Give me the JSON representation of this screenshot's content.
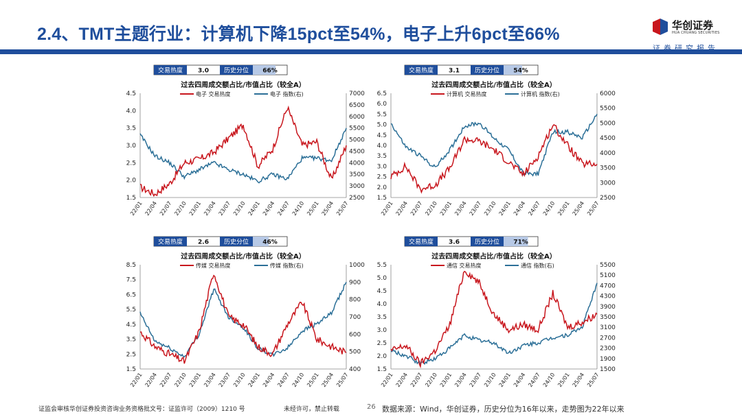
{
  "header": {
    "title": "2.4、TMT主题行业：计算机下降15pct至54%，电子上升6pct至66%",
    "logo_cn": "华创证券",
    "logo_en": "HUA CHUANG SECURITIES",
    "tagline": "证券研究报告"
  },
  "colors": {
    "red": "#c8161d",
    "blue": "#2b6f97",
    "navy": "#1f4e9c",
    "box_fill": "#b7c9e6"
  },
  "panels": [
    {
      "info": {
        "label1": "交易热度",
        "val1": "3.0",
        "label2": "历史分位",
        "val2": "66%",
        "pct": 66
      },
      "chart_title": "过去四周成交额占比/市值占比（较全A）",
      "legend": [
        "电子 交易热度",
        "电子 指数(右)"
      ],
      "left_ticks": [
        "4.5",
        "4.0",
        "3.5",
        "3.0",
        "2.5",
        "2.0",
        "1.5"
      ],
      "right_ticks": [
        "7000",
        "6500",
        "6000",
        "5500",
        "5000",
        "4500",
        "4000",
        "3500",
        "3000",
        "2500"
      ],
      "x_ticks": [
        "22/01",
        "22/04",
        "22/07",
        "22/10",
        "23/01",
        "23/04",
        "23/07",
        "23/10",
        "24/01",
        "24/04",
        "24/07",
        "24/10",
        "25/01",
        "25/04",
        "25/07"
      ]
    },
    {
      "info": {
        "label1": "交易热度",
        "val1": "3.1",
        "label2": "历史分位",
        "val2": "54%",
        "pct": 54
      },
      "chart_title": "过去四周成交额占比/市值占比（较全A）",
      "legend": [
        "计算机 交易热度",
        "计算机 指数(右)"
      ],
      "left_ticks": [
        "6.5",
        "6.0",
        "5.5",
        "5.0",
        "4.5",
        "4.0",
        "3.5",
        "3.0",
        "2.5",
        "2.0",
        "1.5"
      ],
      "right_ticks": [
        "6000",
        "5500",
        "5000",
        "4500",
        "4000",
        "3500",
        "3000",
        "2500"
      ],
      "x_ticks": [
        "22/01",
        "22/04",
        "22/07",
        "22/10",
        "23/01",
        "23/04",
        "23/07",
        "23/10",
        "24/01",
        "24/04",
        "24/07",
        "24/10",
        "25/01",
        "25/04",
        "25/07"
      ]
    },
    {
      "info": {
        "label1": "交易热度",
        "val1": "2.6",
        "label2": "历史分位",
        "val2": "46%",
        "pct": 46
      },
      "chart_title": "过去四周成交额占比/市值占比（较全A）",
      "legend": [
        "传媒 交易热度",
        "传媒 指数(右)"
      ],
      "left_ticks": [
        "8.5",
        "7.5",
        "6.5",
        "5.5",
        "4.5",
        "3.5",
        "2.5",
        "1.5"
      ],
      "right_ticks": [
        "1000",
        "900",
        "800",
        "700",
        "600",
        "500",
        "400"
      ],
      "x_ticks": [
        "22/01",
        "22/04",
        "22/07",
        "22/10",
        "23/01",
        "23/04",
        "23/07",
        "23/10",
        "24/01",
        "24/04",
        "24/07",
        "24/10",
        "25/01",
        "25/04",
        "25/07"
      ]
    },
    {
      "info": {
        "label1": "交易热度",
        "val1": "3.6",
        "label2": "历史分位",
        "val2": "71%",
        "pct": 71
      },
      "chart_title": "过去四周成交额占比/市值占比（较全A）",
      "legend": [
        "通信 交易热度",
        "通信 指数(右)"
      ],
      "left_ticks": [
        "5.5",
        "5.0",
        "4.5",
        "4.0",
        "3.5",
        "3.0",
        "2.5",
        "2.0",
        "1.5"
      ],
      "right_ticks": [
        "5500",
        "5100",
        "4700",
        "4300",
        "3900",
        "3500",
        "3100",
        "2700",
        "2300",
        "1900",
        "1500"
      ],
      "x_ticks": [
        "22/01",
        "22/04",
        "22/07",
        "22/10",
        "23/01",
        "23/04",
        "23/07",
        "23/10",
        "24/01",
        "24/04",
        "24/07",
        "24/10",
        "25/01",
        "25/04",
        "25/07"
      ]
    }
  ],
  "chart_data": [
    {
      "type": "line",
      "x": [
        "22/01",
        "22/04",
        "22/07",
        "22/10",
        "23/01",
        "23/04",
        "23/07",
        "23/10",
        "24/01",
        "24/04",
        "24/07",
        "24/10",
        "25/01",
        "25/04",
        "25/07"
      ],
      "series": [
        {
          "name": "电子 交易热度",
          "axis": "left",
          "values": [
            1.8,
            1.6,
            1.9,
            2.5,
            2.6,
            2.8,
            3.2,
            3.6,
            2.4,
            2.9,
            4.1,
            3.0,
            3.1,
            2.0,
            3.0
          ]
        },
        {
          "name": "电子 指数(右)",
          "axis": "right",
          "values": [
            5200,
            4300,
            4000,
            3400,
            3700,
            4000,
            3700,
            3500,
            3200,
            3500,
            3300,
            4200,
            4200,
            4100,
            5500
          ]
        }
      ],
      "ylim_left": [
        1.5,
        4.5
      ],
      "ylim_right": [
        2500,
        7000
      ]
    },
    {
      "type": "line",
      "x": [
        "22/01",
        "22/04",
        "22/07",
        "22/10",
        "23/01",
        "23/04",
        "23/07",
        "23/10",
        "24/01",
        "24/04",
        "24/07",
        "24/10",
        "25/01",
        "25/04",
        "25/07"
      ],
      "series": [
        {
          "name": "计算机 交易热度",
          "axis": "left",
          "values": [
            2.5,
            3.0,
            1.9,
            2.1,
            2.9,
            4.3,
            4.2,
            3.8,
            3.2,
            2.6,
            3.5,
            5.0,
            4.0,
            3.1,
            3.1
          ]
        },
        {
          "name": "计算机 指数(右)",
          "axis": "right",
          "values": [
            5000,
            4200,
            3900,
            3500,
            4100,
            4900,
            5000,
            4500,
            4100,
            3300,
            3300,
            4700,
            4700,
            4500,
            5300
          ]
        }
      ],
      "ylim_left": [
        1.5,
        6.5
      ],
      "ylim_right": [
        2500,
        6000
      ]
    },
    {
      "type": "line",
      "x": [
        "22/01",
        "22/04",
        "22/07",
        "22/10",
        "23/01",
        "23/04",
        "23/07",
        "23/10",
        "24/01",
        "24/04",
        "24/07",
        "24/10",
        "25/01",
        "25/04",
        "25/07"
      ],
      "series": [
        {
          "name": "传媒 交易热度",
          "axis": "left",
          "values": [
            4.0,
            3.0,
            2.5,
            2.0,
            4.0,
            8.0,
            5.0,
            4.5,
            3.0,
            2.5,
            4.5,
            6.0,
            3.5,
            3.0,
            2.6
          ]
        },
        {
          "name": "传媒 指数(右)",
          "axis": "right",
          "values": [
            720,
            560,
            520,
            470,
            600,
            860,
            700,
            640,
            520,
            480,
            520,
            620,
            660,
            720,
            900
          ]
        }
      ],
      "ylim_left": [
        1.5,
        8.5
      ],
      "ylim_right": [
        400,
        1000
      ]
    },
    {
      "type": "line",
      "x": [
        "22/01",
        "22/04",
        "22/07",
        "22/10",
        "23/01",
        "23/04",
        "23/07",
        "23/10",
        "24/01",
        "24/04",
        "24/07",
        "24/10",
        "25/01",
        "25/04",
        "25/07"
      ],
      "series": [
        {
          "name": "通信 交易热度",
          "axis": "left",
          "values": [
            2.2,
            2.4,
            1.7,
            2.2,
            3.2,
            5.3,
            4.8,
            3.6,
            3.0,
            3.2,
            3.0,
            4.4,
            3.1,
            3.3,
            3.6
          ]
        },
        {
          "name": "通信 指数(右)",
          "axis": "right",
          "values": [
            2200,
            2000,
            1700,
            1900,
            2300,
            2800,
            2600,
            2500,
            2100,
            2400,
            2500,
            2700,
            2800,
            3100,
            4800
          ]
        }
      ],
      "ylim_left": [
        1.5,
        5.5
      ],
      "ylim_right": [
        1500,
        5500
      ]
    }
  ],
  "footer": {
    "license": "证监会审核华创证券投资咨询业务资格批文号：证监许可（2009）1210 号",
    "notice": "未经许可，禁止转载",
    "page": "26",
    "source": "数据来源：Wind，华创证券，历史分位为16年以来，走势图为22年以来"
  }
}
